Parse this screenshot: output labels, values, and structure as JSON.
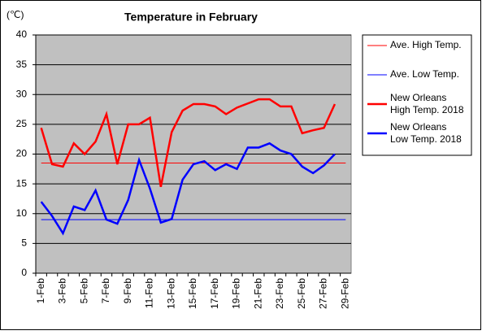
{
  "chart_data": {
    "type": "line",
    "title": "Temperature in February",
    "y_label": "(℃)",
    "categories": [
      "1-Feb",
      null,
      "3-Feb",
      null,
      "5-Feb",
      null,
      "7-Feb",
      null,
      "9-Feb",
      null,
      "11-Feb",
      null,
      "13-Feb",
      null,
      "15-Feb",
      null,
      "17-Feb",
      null,
      "19-Feb",
      null,
      "21-Feb",
      null,
      "23-Feb",
      null,
      "25-Feb",
      null,
      "27-Feb",
      null,
      "29-Feb"
    ],
    "series": [
      {
        "name": "Ave. High Temp.",
        "color": "#ff0000",
        "width": 1,
        "values": [
          18.5,
          18.5,
          18.5,
          18.5,
          18.5,
          18.5,
          18.5,
          18.5,
          18.5,
          18.5,
          18.5,
          18.5,
          18.5,
          18.5,
          18.5,
          18.5,
          18.5,
          18.5,
          18.5,
          18.5,
          18.5,
          18.5,
          18.5,
          18.5,
          18.5,
          18.5,
          18.5,
          18.5,
          18.5
        ]
      },
      {
        "name": "Ave. Low Temp.",
        "color": "#0000ff",
        "width": 1,
        "values": [
          9,
          9,
          9,
          9,
          9,
          9,
          9,
          9,
          9,
          9,
          9,
          9,
          9,
          9,
          9,
          9,
          9,
          9,
          9,
          9,
          9,
          9,
          9,
          9,
          9,
          9,
          9,
          9,
          9
        ]
      },
      {
        "name": "New Orleans High Temp. 2018",
        "color": "#ff0000",
        "width": 2.5,
        "values": [
          24.4,
          18.3,
          17.9,
          21.8,
          20.0,
          22.1,
          26.7,
          18.3,
          25.0,
          25.0,
          26.1,
          14.5,
          23.7,
          27.3,
          28.4,
          28.4,
          28.0,
          26.7,
          27.8,
          28.5,
          29.2,
          29.2,
          28.0,
          28.0,
          23.5,
          24.0,
          24.4,
          28.4,
          null
        ]
      },
      {
        "name": "New Orleans Low Temp. 2018",
        "color": "#0000ff",
        "width": 2.5,
        "values": [
          12.0,
          9.6,
          6.7,
          11.2,
          10.6,
          13.9,
          9.0,
          8.3,
          12.3,
          19.0,
          14.2,
          8.5,
          9.1,
          15.7,
          18.3,
          18.8,
          17.3,
          18.3,
          17.5,
          21.1,
          21.1,
          21.8,
          20.6,
          20.0,
          17.9,
          16.8,
          18.1,
          20.0,
          null
        ]
      }
    ],
    "ylim": [
      0,
      40
    ],
    "yticks": [
      0,
      5,
      10,
      15,
      20,
      25,
      30,
      35,
      40
    ],
    "grid": true
  }
}
